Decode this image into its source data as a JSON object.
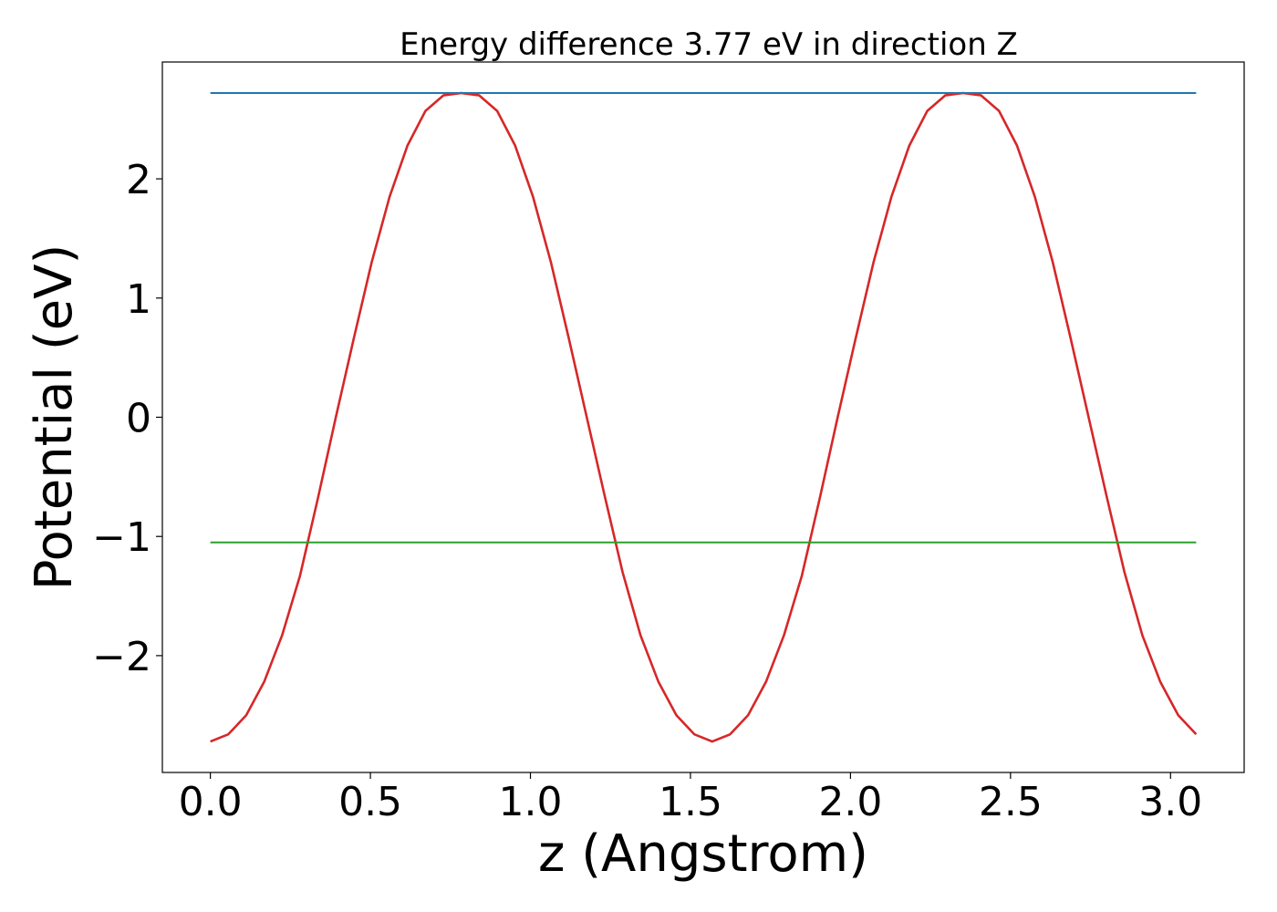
{
  "chart_data": {
    "type": "line",
    "title": "Energy difference 3.77 eV in direction Z",
    "xlabel": "z (Angstrom)",
    "ylabel": "Potential (eV)",
    "xlim": [
      -0.15,
      3.23
    ],
    "ylim": [
      -2.98,
      2.98
    ],
    "xticks": [
      0.0,
      0.5,
      1.0,
      1.5,
      2.0,
      2.5,
      3.0
    ],
    "xtick_labels": [
      "0.0",
      "0.5",
      "1.0",
      "1.5",
      "2.0",
      "2.5",
      "3.0"
    ],
    "yticks": [
      -2,
      -1,
      0,
      1,
      2
    ],
    "ytick_labels": [
      "−2",
      "−1",
      "0",
      "1",
      "2"
    ],
    "grid": false,
    "legend": "none",
    "series": [
      {
        "color": "#d62728",
        "x": [
          0.0,
          0.056,
          0.112,
          0.168,
          0.224,
          0.28,
          0.336,
          0.392,
          0.448,
          0.504,
          0.56,
          0.616,
          0.672,
          0.728,
          0.784,
          0.84,
          0.896,
          0.952,
          1.008,
          1.064,
          1.12,
          1.176,
          1.232,
          1.288,
          1.344,
          1.4,
          1.456,
          1.512,
          1.568,
          1.624,
          1.68,
          1.736,
          1.792,
          1.848,
          1.904,
          1.96,
          2.016,
          2.072,
          2.128,
          2.184,
          2.24,
          2.296,
          2.352,
          2.408,
          2.464,
          2.52,
          2.576,
          2.632,
          2.688,
          2.744,
          2.8,
          2.856,
          2.912,
          2.968,
          3.024,
          3.08
        ],
        "y": [
          -2.72,
          -2.66,
          -2.5,
          -2.22,
          -1.83,
          -1.33,
          -0.68,
          0.0,
          0.66,
          1.3,
          1.85,
          2.28,
          2.57,
          2.7,
          2.72,
          2.7,
          2.57,
          2.28,
          1.85,
          1.3,
          0.66,
          0.0,
          -0.66,
          -1.3,
          -1.83,
          -2.22,
          -2.5,
          -2.66,
          -2.72,
          -2.66,
          -2.5,
          -2.22,
          -1.83,
          -1.33,
          -0.68,
          0.0,
          0.66,
          1.3,
          1.85,
          2.28,
          2.57,
          2.7,
          2.72,
          2.7,
          2.57,
          2.28,
          1.85,
          1.3,
          0.66,
          0.0,
          -0.66,
          -1.3,
          -1.83,
          -2.22,
          -2.5,
          -2.66
        ]
      },
      {
        "color": "#1f77b4",
        "x": [
          0.0,
          3.08
        ],
        "y": [
          2.72,
          2.72
        ]
      },
      {
        "color": "#2ca02c",
        "x": [
          0.0,
          3.08
        ],
        "y": [
          -1.05,
          -1.05
        ]
      }
    ]
  }
}
